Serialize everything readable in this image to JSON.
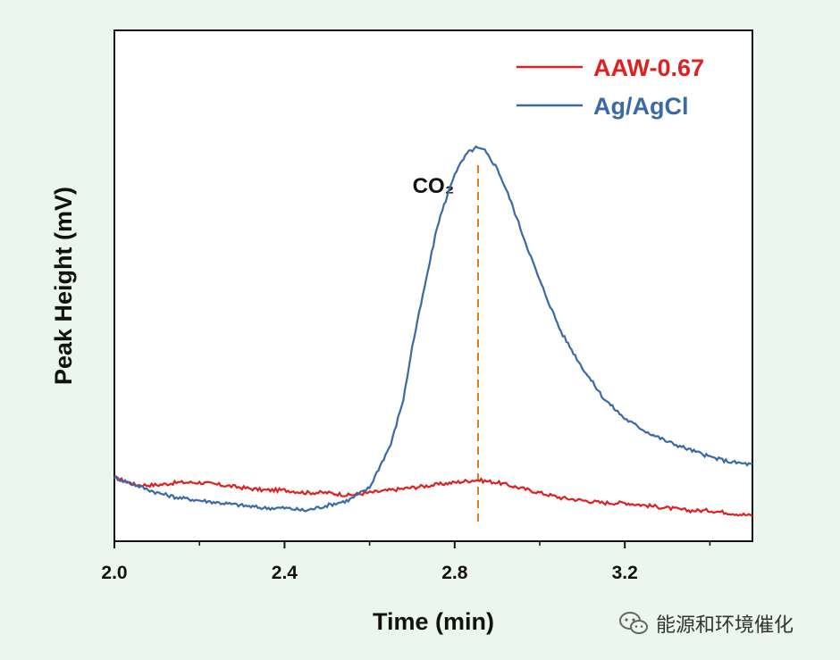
{
  "chart_data": {
    "type": "line",
    "title": "",
    "xlabel": "Time (min)",
    "ylabel": "Peak Height (mV)",
    "xlim": [
      2.0,
      3.5
    ],
    "ylim": [
      0,
      100
    ],
    "y_ticks_labeled": false,
    "x_ticks": [
      2.0,
      2.4,
      2.8,
      3.2
    ],
    "x_tick_labels": [
      "2.0",
      "2.4",
      "2.8",
      "3.2"
    ],
    "legend_position": "top-right",
    "series": [
      {
        "name": "AAW-0.67",
        "color": "#e02020",
        "x": [
          2.0,
          2.05,
          2.1,
          2.15,
          2.2,
          2.25,
          2.3,
          2.35,
          2.4,
          2.45,
          2.5,
          2.55,
          2.6,
          2.65,
          2.7,
          2.75,
          2.8,
          2.85,
          2.9,
          2.95,
          3.0,
          3.05,
          3.1,
          3.15,
          3.2,
          3.25,
          3.3,
          3.35,
          3.4,
          3.45,
          3.5
        ],
        "y": [
          12.5,
          11.0,
          11.0,
          11.5,
          11.5,
          11.0,
          10.5,
          10.0,
          10.0,
          9.5,
          9.5,
          9.0,
          9.5,
          10.0,
          10.5,
          11.0,
          11.5,
          12.0,
          11.5,
          10.5,
          9.5,
          8.5,
          8.0,
          7.5,
          7.5,
          7.0,
          6.5,
          6.0,
          6.0,
          5.5,
          5.0
        ]
      },
      {
        "name": "Ag/AgCl",
        "color": "#3a6aa5",
        "x": [
          2.0,
          2.05,
          2.1,
          2.15,
          2.2,
          2.25,
          2.3,
          2.35,
          2.4,
          2.45,
          2.5,
          2.55,
          2.6,
          2.62,
          2.65,
          2.68,
          2.7,
          2.73,
          2.76,
          2.8,
          2.83,
          2.85,
          2.87,
          2.9,
          2.93,
          2.96,
          3.0,
          3.05,
          3.1,
          3.15,
          3.2,
          3.25,
          3.3,
          3.35,
          3.4,
          3.45,
          3.5
        ],
        "y": [
          12.5,
          11.0,
          9.5,
          8.5,
          8.0,
          7.5,
          7.0,
          6.5,
          6.5,
          6.0,
          7.0,
          8.0,
          10.5,
          14.0,
          19.0,
          28.0,
          38.0,
          50.0,
          62.0,
          72.0,
          76.0,
          77.0,
          76.5,
          73.0,
          67.0,
          60.0,
          51.0,
          41.0,
          34.0,
          28.0,
          24.0,
          21.5,
          19.5,
          18.0,
          16.5,
          15.5,
          15.0
        ]
      }
    ],
    "annotations": [
      {
        "text": "CO₂",
        "x": 2.855,
        "style": "vertical dashed line",
        "color": "#e07b20"
      }
    ]
  },
  "watermark": {
    "text": "能源和环境催化",
    "icon": "wechat-icon"
  }
}
